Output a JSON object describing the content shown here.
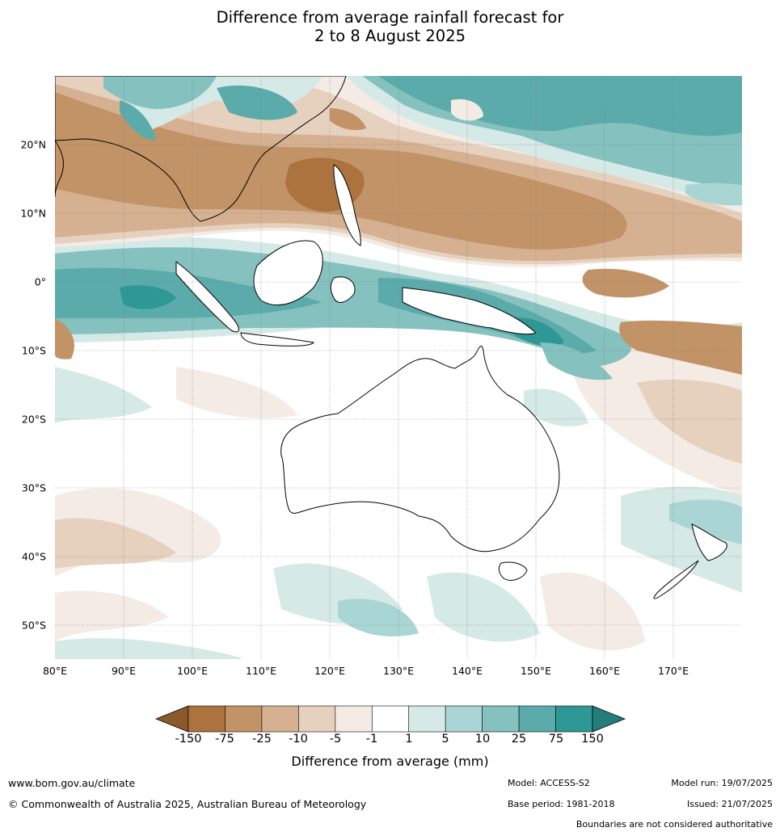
{
  "title": {
    "line1": "Difference from average rainfall forecast for",
    "line2": "2 to 8 August 2025"
  },
  "map": {
    "lat_labels": [
      "20°N",
      "10°N",
      "0°",
      "10°S",
      "20°S",
      "30°S",
      "40°S",
      "50°S"
    ],
    "lon_labels": [
      "80°E",
      "90°E",
      "100°E",
      "110°E",
      "120°E",
      "130°E",
      "140°E",
      "150°E",
      "160°E",
      "170°E"
    ],
    "extent": {
      "lon": [
        80,
        180
      ],
      "lat": [
        -55,
        30
      ]
    },
    "coastline_color": "#000000",
    "border_color": "#808080",
    "gridline_color": "#808080"
  },
  "colorbar": {
    "ticks": [
      "-150",
      "-75",
      "-25",
      "-10",
      "-5",
      "-1",
      "1",
      "5",
      "10",
      "25",
      "75",
      "150"
    ],
    "colors": [
      "#8c5a2a",
      "#ad733e",
      "#c29366",
      "#d5b192",
      "#e6d1bf",
      "#f4ebe5",
      "#ffffff",
      "#d5e9e7",
      "#a9d6d4",
      "#84c1bf",
      "#5aabaa",
      "#2e9896",
      "#237d7b"
    ],
    "label": "Difference from average (mm)"
  },
  "footer": {
    "website": "www.bom.gov.au/climate",
    "copyright": "© Commonwealth of Australia 2025, Australian Bureau of Meteorology",
    "model": "Model: ACCESS-S2",
    "base_period": "Base period: 1981-2018",
    "model_run": "Model run: 19/07/2025",
    "issued": "Issued: 21/07/2025",
    "disclaimer": "Boundaries are not considered authoritative"
  }
}
